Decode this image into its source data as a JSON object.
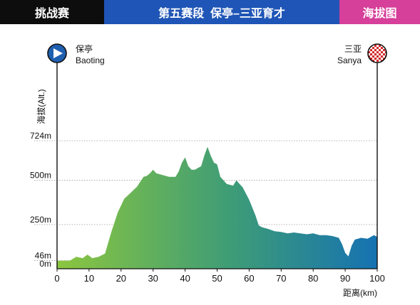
{
  "banner": {
    "left": "挑战赛",
    "center": "第五赛段  保亭–三亚育才",
    "right": "海拔图"
  },
  "colors": {
    "left_tab": "#0d0d0d",
    "center_tab": "#1f55b6",
    "right_tab": "#d63f9a",
    "gradient_start": "#8cc63f",
    "gradient_mid": "#3d9c77",
    "gradient_end": "#1672b2",
    "start_marker": "#1f5fb0"
  },
  "start": {
    "name_cn": "保亭",
    "name_en": "Baoting",
    "icon": "play-arrow-icon"
  },
  "finish": {
    "name_cn": "三亚",
    "name_en": "Sanya",
    "icon": "checkered-flag-icon"
  },
  "chart_data": {
    "type": "area",
    "title": "",
    "ylabel": "海拔(Alt.)",
    "xlabel": "距离(km)",
    "xlim": [
      0,
      100
    ],
    "ylim": [
      0,
      724
    ],
    "x_ticks": [
      0,
      10,
      20,
      30,
      40,
      50,
      60,
      70,
      80,
      90,
      100
    ],
    "y_ticks": [
      {
        "value": 0,
        "label": "0m"
      },
      {
        "value": 46,
        "label": "46m"
      },
      {
        "value": 250,
        "label": "250m"
      },
      {
        "value": 500,
        "label": "500m"
      },
      {
        "value": 724,
        "label": "724m"
      }
    ],
    "gridlines": "dotted horizontal",
    "series": [
      {
        "x": [
          0,
          4,
          6,
          8,
          9.5,
          11,
          13,
          15,
          17,
          19,
          21,
          23,
          25,
          27,
          28,
          29,
          30,
          31,
          33,
          35,
          37,
          38,
          39,
          40,
          41,
          42,
          43,
          45,
          46,
          47,
          48,
          49,
          50,
          51,
          53,
          55,
          56,
          58,
          60,
          62,
          63,
          64,
          66,
          68,
          70,
          72,
          74,
          76,
          78,
          80,
          82,
          84,
          86,
          88,
          89,
          90,
          91,
          92,
          93,
          95,
          97,
          99,
          100
        ],
        "y": [
          46,
          46,
          68,
          60,
          80,
          60,
          68,
          86,
          210,
          320,
          396,
          430,
          465,
          520,
          525,
          540,
          560,
          540,
          530,
          520,
          520,
          550,
          600,
          630,
          580,
          560,
          560,
          580,
          640,
          690,
          640,
          600,
          590,
          520,
          480,
          470,
          500,
          460,
          390,
          300,
          245,
          235,
          225,
          212,
          208,
          200,
          205,
          200,
          195,
          200,
          190,
          190,
          185,
          175,
          140,
          90,
          70,
          130,
          165,
          175,
          170,
          190,
          180
        ]
      }
    ]
  }
}
